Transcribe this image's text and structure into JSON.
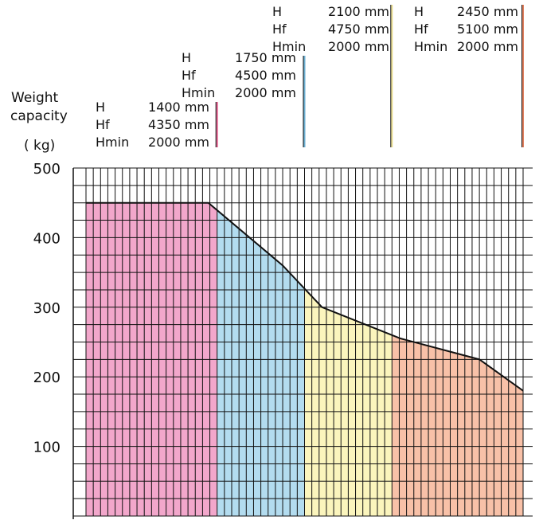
{
  "chart_data": {
    "type": "area",
    "y_axis_title": [
      "Weight",
      "capacity"
    ],
    "y_unit": "( kg)",
    "yticks": [
      100,
      200,
      300,
      400,
      500
    ],
    "ylim": [
      0,
      500
    ],
    "x_divisions": 60,
    "capacity_curve": {
      "x": [
        0,
        28,
        45,
        54,
        60,
        72,
        90,
        100
      ],
      "y": [
        450,
        450,
        360,
        300,
        285,
        255,
        225,
        180
      ]
    },
    "bands": [
      {
        "start": 0,
        "end": 30,
        "color": "#f2a7cb",
        "edge_color": "#e05a8a",
        "specs": [
          {
            "label": "H",
            "value": "1400 mm"
          },
          {
            "label": "Hf",
            "value": "4350 mm"
          },
          {
            "label": "Hmin",
            "value": "2000 mm"
          }
        ]
      },
      {
        "start": 30,
        "end": 50,
        "color": "#b3dcef",
        "edge_color": "#6aaed0",
        "specs": [
          {
            "label": "H",
            "value": "1750 mm"
          },
          {
            "label": "Hf",
            "value": "4500 mm"
          },
          {
            "label": "Hmin",
            "value": "2000 mm"
          }
        ]
      },
      {
        "start": 50,
        "end": 70,
        "color": "#fbf5bd",
        "edge_color": "#e8dc8a",
        "specs": [
          {
            "label": "H",
            "value": "2100 mm"
          },
          {
            "label": "Hf",
            "value": "4750 mm"
          },
          {
            "label": "Hmin",
            "value": "2000 mm"
          }
        ]
      },
      {
        "start": 70,
        "end": 100,
        "color": "#f8c1a8",
        "edge_color": "#e08060",
        "specs": [
          {
            "label": "H",
            "value": "2450 mm"
          },
          {
            "label": "Hf",
            "value": "5100 mm"
          },
          {
            "label": "Hmin",
            "value": "2000 mm"
          }
        ]
      }
    ],
    "grid": true,
    "legend": "none"
  }
}
